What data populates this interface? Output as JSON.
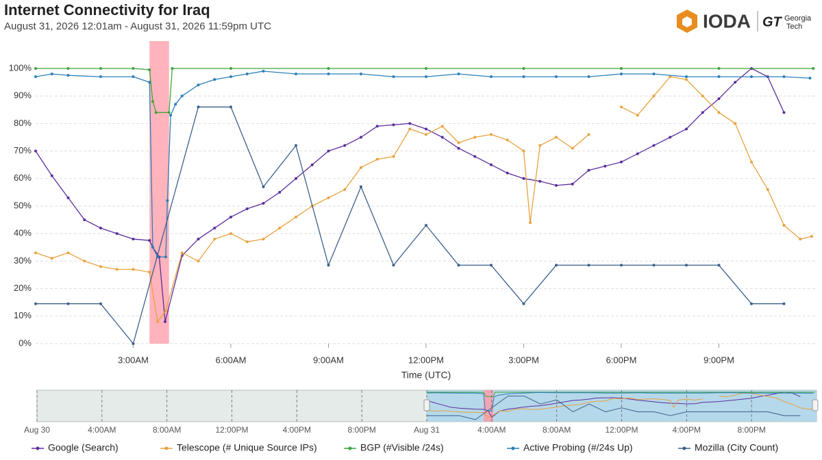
{
  "header": {
    "title": "Internet Connectivity for Iraq",
    "subtitle": "August 31, 2026 12:01am - August 31, 2026 11:59pm UTC",
    "logo": "IODA",
    "partner_mark": "GT",
    "partner_line1": "Georgia",
    "partner_line2": "Tech"
  },
  "chart_data": {
    "type": "line",
    "x_label": "Time (UTC)",
    "xlim": [
      0,
      24
    ],
    "xticks": [
      {
        "value": 3,
        "label": "3:00AM"
      },
      {
        "value": 6,
        "label": "6:00AM"
      },
      {
        "value": 9,
        "label": "9:00AM"
      },
      {
        "value": 12,
        "label": "12:00PM"
      },
      {
        "value": 15,
        "label": "3:00PM"
      },
      {
        "value": 18,
        "label": "6:00PM"
      },
      {
        "value": 21,
        "label": "9:00PM"
      }
    ],
    "ylim": [
      0,
      100
    ],
    "yticks": [
      {
        "value": 0,
        "label": "0%"
      },
      {
        "value": 10,
        "label": "10%"
      },
      {
        "value": 20,
        "label": "20%"
      },
      {
        "value": 30,
        "label": "30%"
      },
      {
        "value": 40,
        "label": "40%"
      },
      {
        "value": 50,
        "label": "50%"
      },
      {
        "value": 60,
        "label": "60%"
      },
      {
        "value": 70,
        "label": "70%"
      },
      {
        "value": 80,
        "label": "80%"
      },
      {
        "value": 90,
        "label": "90%"
      },
      {
        "value": 100,
        "label": "100%"
      }
    ],
    "grid": true,
    "alert_band": [
      3.5,
      4.1
    ],
    "alert_color": "#ff9aa6",
    "series": [
      {
        "name": "Google (Search)",
        "color": "#5b2d9c",
        "x": [
          0,
          0.5,
          1,
          1.5,
          2,
          2.5,
          3,
          3.5,
          3.6,
          3.8,
          3.98,
          4.5,
          5,
          5.5,
          6,
          6.5,
          7,
          7.5,
          8,
          8.5,
          9,
          9.5,
          10,
          10.5,
          11,
          11.5,
          12,
          12.5,
          13,
          13.5,
          14,
          14.5,
          15,
          15.5,
          16,
          16.5,
          17,
          17.5,
          18,
          18.5,
          19,
          19.5,
          20,
          20.5,
          21,
          21.5,
          22,
          22.5,
          23
        ],
        "values": [
          70,
          61,
          53,
          45,
          42,
          40,
          38,
          37.5,
          35,
          31.5,
          8,
          32,
          38,
          42,
          46,
          49,
          51,
          55,
          60,
          65,
          70,
          72,
          75,
          79,
          79.5,
          80,
          78,
          75,
          71,
          68,
          65,
          62,
          60,
          59,
          57.5,
          58,
          63,
          64.5,
          66,
          69,
          72,
          75,
          78,
          84,
          89,
          95,
          100,
          97,
          84
        ]
      },
      {
        "name": "Telescope (# Unique Source IPs)",
        "color": "#e8a23e",
        "x": [
          0,
          0.5,
          1,
          1.5,
          2,
          2.5,
          3,
          3.5,
          3.75,
          4,
          4.5,
          5,
          5.5,
          6,
          6.5,
          7,
          7.5,
          8,
          8.5,
          9,
          9.5,
          10,
          10.5,
          11,
          11.5,
          12,
          12.5,
          13,
          13.5,
          14,
          14.5,
          15,
          15.2,
          15.5,
          16,
          16.5,
          17,
          17.5,
          18,
          18.5,
          19,
          19.5,
          20,
          20.5,
          21,
          21.5,
          22,
          22.5,
          23,
          23.5,
          23.85
        ],
        "values": [
          33,
          31,
          33,
          30,
          28,
          27,
          27,
          26,
          8,
          12,
          33,
          30,
          38,
          40,
          37,
          38,
          42,
          46,
          50,
          53,
          56,
          64,
          67,
          68,
          78,
          76,
          79,
          73,
          75,
          76,
          74,
          70,
          44,
          72,
          75,
          71,
          76,
          null,
          86,
          83,
          90,
          97,
          96,
          90,
          84,
          80,
          66,
          56,
          43,
          38,
          39
        ]
      },
      {
        "name": "BGP (#Visible /24s)",
        "color": "#3ea43a",
        "x": [
          0,
          1,
          2,
          3,
          3.5,
          3.6,
          3.7,
          4.1,
          4.2,
          6,
          9,
          12,
          15,
          18,
          21,
          23.9
        ],
        "values": [
          100,
          100,
          100,
          100,
          99.5,
          88,
          84,
          84,
          100,
          100,
          100,
          100,
          100,
          100,
          100,
          100
        ]
      },
      {
        "name": "Active Probing (#/24s Up)",
        "color": "#2b7fb8",
        "x": [
          0,
          0.5,
          1,
          2,
          3,
          3.5,
          3.6,
          3.75,
          4,
          4.05,
          4.15,
          4.3,
          4.5,
          5,
          5.5,
          6,
          6.5,
          7,
          8,
          9,
          10,
          11,
          12,
          13,
          14,
          15,
          16,
          17,
          18,
          19,
          20,
          21,
          22,
          23,
          23.8
        ],
        "values": [
          97,
          98,
          97.5,
          97,
          97,
          95,
          35,
          31.5,
          31.5,
          52,
          83,
          87,
          90,
          94,
          96,
          97,
          98,
          99,
          98,
          98,
          98,
          97,
          97,
          98,
          97,
          97,
          97,
          97,
          98,
          98,
          97,
          97,
          97,
          97,
          96.5
        ]
      },
      {
        "name": "Mozilla (City Count)",
        "color": "#3b5f8c",
        "x": [
          0,
          1,
          2,
          3,
          5,
          6,
          7,
          8,
          9,
          10,
          11,
          12,
          13,
          14,
          15,
          16,
          17,
          18,
          19,
          20,
          21,
          22,
          23
        ],
        "values": [
          14.5,
          14.5,
          14.5,
          0,
          86,
          86,
          57,
          72,
          28.5,
          57,
          28.5,
          43,
          28.5,
          28.5,
          14.5,
          28.5,
          28.5,
          28.5,
          28.5,
          28.5,
          28.5,
          14.5,
          14.5
        ]
      }
    ]
  },
  "navigator": {
    "xlim": [
      0,
      48
    ],
    "offset": 24,
    "selection": [
      24,
      48
    ],
    "xticks": [
      {
        "value": 0,
        "label": "Aug 30"
      },
      {
        "value": 4,
        "label": "4:00AM"
      },
      {
        "value": 8,
        "label": "8:00AM"
      },
      {
        "value": 12,
        "label": "12:00PM"
      },
      {
        "value": 16,
        "label": "4:00PM"
      },
      {
        "value": 20,
        "label": "8:00PM"
      },
      {
        "value": 24,
        "label": "Aug 31"
      },
      {
        "value": 28,
        "label": "4:00AM"
      },
      {
        "value": 32,
        "label": "8:00AM"
      },
      {
        "value": 36,
        "label": "12:00PM"
      },
      {
        "value": 40,
        "label": "4:00PM"
      },
      {
        "value": 44,
        "label": "8:00PM"
      }
    ]
  }
}
